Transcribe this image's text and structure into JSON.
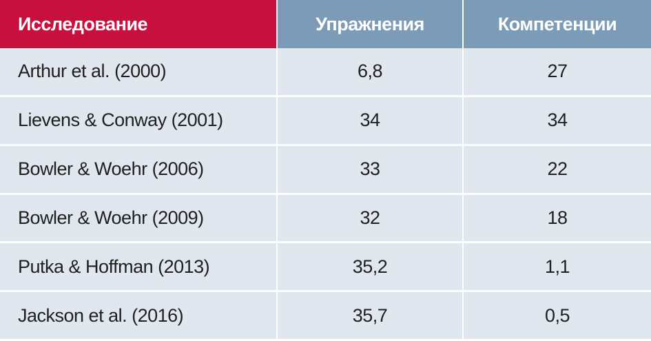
{
  "table": {
    "header": [
      "Исследование",
      "Упражнения",
      "Компетенции"
    ],
    "rows": [
      [
        "Arthur et al. (2000)",
        "6,8",
        "27"
      ],
      [
        "Lievens & Conway (2001)",
        "34",
        "34"
      ],
      [
        "Bowler & Woehr (2006)",
        "33",
        "22"
      ],
      [
        "Bowler & Woehr (2009)",
        "32",
        "18"
      ],
      [
        "Putka & Hoffman (2013)",
        "35,2",
        "1,1"
      ],
      [
        "Jackson et al. (2016)",
        "35,7",
        "0,5"
      ]
    ]
  }
}
